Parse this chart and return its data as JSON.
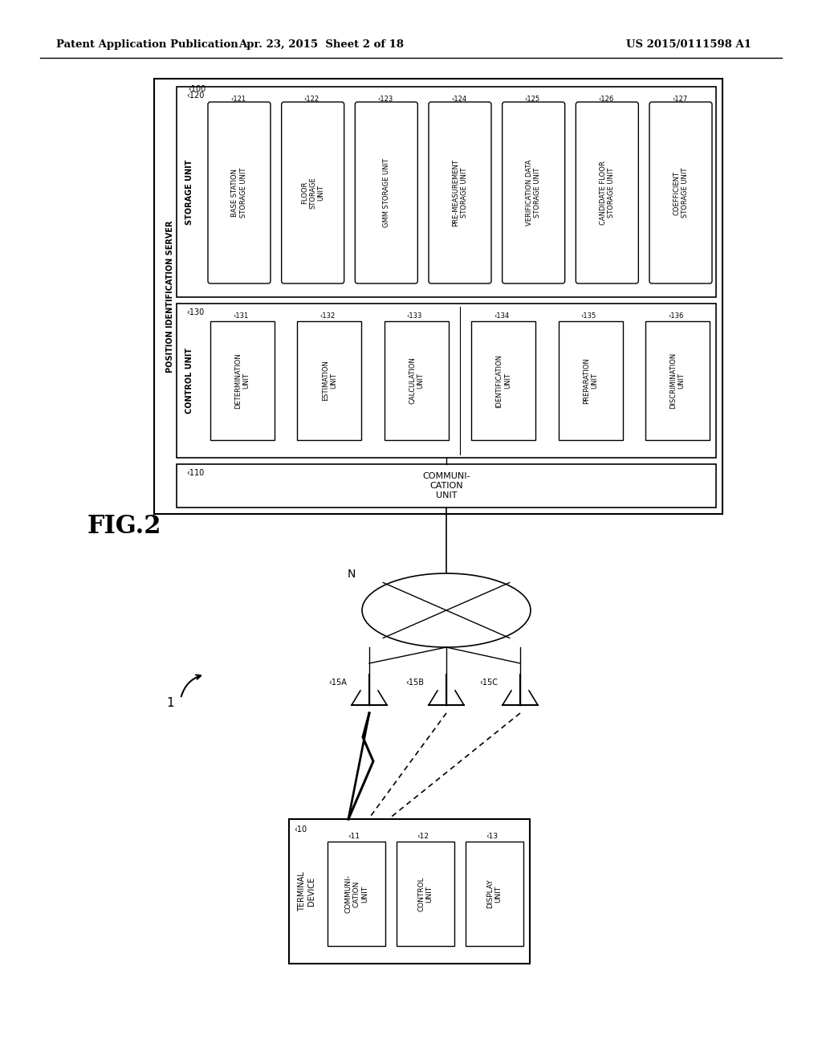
{
  "header_left": "Patent Application Publication",
  "header_mid": "Apr. 23, 2015  Sheet 2 of 18",
  "header_right": "US 2015/0111598 A1",
  "fig_label": "FIG.2",
  "server_label": "POSITION IDENTIFICATION SERVER",
  "server_ref": "‹100",
  "storage_unit_label": "STORAGE UNIT",
  "storage_ref": "‹120",
  "control_unit_label": "CONTROL UNIT",
  "control_ref": "‹130",
  "comm_unit_ref": "‹110",
  "comm_unit_text": "COMMUNI-\nCATION\nUNIT",
  "storage_boxes": [
    {
      "ref": "‹121",
      "label": "BASE STATION\nSTORAGE UNIT"
    },
    {
      "ref": "‹122",
      "label": "FLOOR\nSTORAGE\nUNIT"
    },
    {
      "ref": "‹123",
      "label": "GMM STORAGE UNIT"
    },
    {
      "ref": "‹124",
      "label": "PRE-MEASUREMENT\nSTORAGE UNIT"
    },
    {
      "ref": "‹125",
      "label": "VERIFICATION DATA\nSTORAGE UNIT"
    },
    {
      "ref": "‹126",
      "label": "CANDIDATE FLOOR\nSTORAGE UNIT"
    },
    {
      "ref": "‹127",
      "label": "COEFFICIENT\nSTORAGE UNIT"
    }
  ],
  "control_boxes": [
    {
      "ref": "‹131",
      "label": "DETERMINATION\nUNIT"
    },
    {
      "ref": "‹132",
      "label": "ESTIMATION\nUNIT"
    },
    {
      "ref": "‹133",
      "label": "CALCULATION\nUNIT"
    },
    {
      "ref": "‹134",
      "label": "IDENTIFICATION\nUNIT"
    },
    {
      "ref": "‹135",
      "label": "PREPARATION\nUNIT"
    },
    {
      "ref": "‹136",
      "label": "DISCRIMINATION\nUNIT"
    }
  ],
  "network_label": "N",
  "bs_refs": [
    "‹15A",
    "‹15B",
    "‹15C"
  ],
  "terminal_ref": "‹10",
  "terminal_label": "TERMINAL\nDEVICE",
  "terminal_boxes": [
    {
      "ref": "‹11",
      "label": "COMMUNI-\nCATION\nUNIT"
    },
    {
      "ref": "‹12",
      "label": "CONTROL\nUNIT"
    },
    {
      "ref": "‹13",
      "label": "DISPLAY\nUNIT"
    }
  ],
  "system_ref": "1"
}
